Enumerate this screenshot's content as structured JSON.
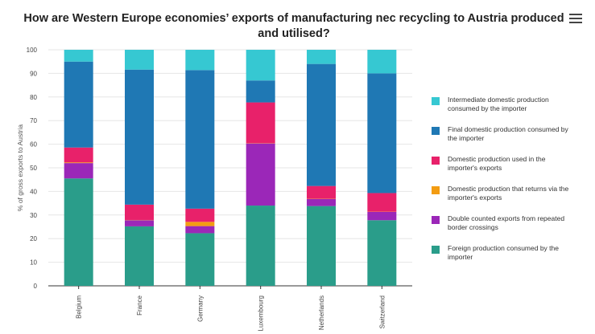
{
  "header": {
    "title": "How are Western Europe economies’ exports of manufacturing nec recycling to Austria produced and utilised?",
    "menu_icon": "hamburger-menu-icon"
  },
  "chart_data": {
    "type": "bar",
    "stacked": true,
    "title": "How are Western Europe economies’ exports of manufacturing nec recycling to Austria produced and utilised?",
    "xlabel": "",
    "ylabel": "% of gross exports to Austria",
    "ylim": [
      0,
      100
    ],
    "yticks": [
      0,
      10,
      20,
      30,
      40,
      50,
      60,
      70,
      80,
      90,
      100
    ],
    "grid": true,
    "legend_position": "right",
    "categories": [
      "Belgium",
      "France",
      "Germany",
      "Luxembourg",
      "Netherlands",
      "Switzerland"
    ],
    "series": [
      {
        "name": "Foreign production consumed by the importer",
        "color": "#2a9d8a",
        "values": [
          45.5,
          25.2,
          22.3,
          34.0,
          33.8,
          27.8
        ]
      },
      {
        "name": "Double counted exports from repeated border crossings",
        "color": "#9b27b8",
        "values": [
          6.5,
          2.6,
          3.0,
          26.3,
          3.0,
          3.5
        ]
      },
      {
        "name": "Domestic production that returns via the importer's exports",
        "color": "#f39c12",
        "values": [
          0.3,
          0.1,
          1.8,
          0.1,
          0.1,
          0.1
        ]
      },
      {
        "name": "Domestic production used in the importer's exports",
        "color": "#e8216a",
        "values": [
          6.3,
          6.5,
          5.6,
          17.3,
          5.4,
          7.9
        ]
      },
      {
        "name": "Final domestic production consumed by the importer",
        "color": "#1f78b4",
        "values": [
          36.4,
          57.2,
          58.7,
          9.3,
          51.7,
          50.7
        ]
      },
      {
        "name": "Intermediate domestic production consumed by the importer",
        "color": "#36c8d2",
        "values": [
          5.0,
          8.4,
          8.6,
          13.0,
          6.0,
          10.0
        ]
      }
    ]
  }
}
